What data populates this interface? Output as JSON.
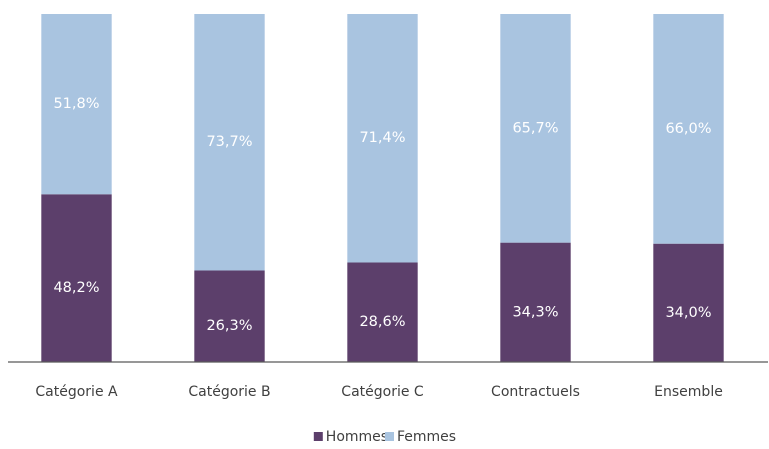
{
  "chart_data": {
    "type": "stacked_bar",
    "categories": [
      "Catégorie A",
      "Catégorie B",
      "Catégorie C",
      "Contractuels",
      "Ensemble"
    ],
    "series": [
      {
        "name": "Hommes",
        "color": "#5c3f6b",
        "values": [
          48.2,
          26.3,
          28.6,
          34.3,
          34.0
        ],
        "value_labels": [
          "48,2%",
          "26,3%",
          "28,6%",
          "34,3%",
          "34,0%"
        ]
      },
      {
        "name": "Femmes",
        "color": "#a9c4e0",
        "values": [
          51.8,
          73.7,
          71.4,
          65.7,
          66.0
        ],
        "value_labels": [
          "51,8%",
          "73,7%",
          "71,4%",
          "65,7%",
          "66,0%"
        ]
      }
    ],
    "ylim": [
      0,
      100
    ]
  }
}
